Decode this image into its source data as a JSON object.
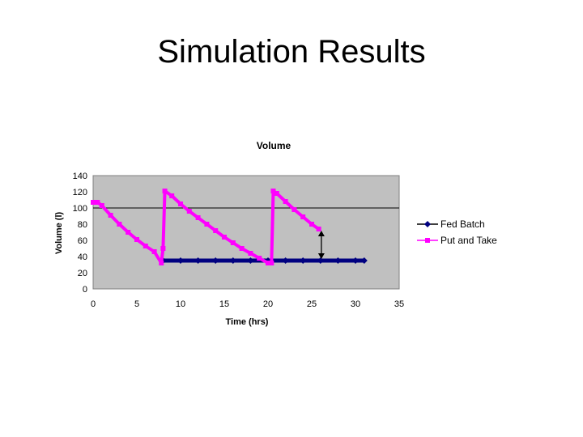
{
  "slide": {
    "title": "Simulation Results"
  },
  "colors": {
    "plot_bg": "#c0c0c0",
    "fed_batch": "#000080",
    "put_and_take": "#ff00ff"
  },
  "chart_data": {
    "type": "line",
    "title": "Volume",
    "xlabel": "Time (hrs)",
    "ylabel": "Volume (l)",
    "xlim": [
      0,
      35
    ],
    "ylim": [
      0,
      140
    ],
    "xticks": [
      0,
      5,
      10,
      15,
      20,
      25,
      30,
      35
    ],
    "yticks": [
      0,
      20,
      40,
      60,
      80,
      100,
      120,
      140
    ],
    "reference_line": 100,
    "legend_position": "right",
    "annotation": "double-headed arrow between the two series at about t = 26 hrs",
    "series": [
      {
        "name": "Fed Batch",
        "color": "#000080",
        "marker": "diamond",
        "x": [
          8,
          10,
          12,
          14,
          16,
          18,
          20,
          22,
          24,
          26,
          28,
          30,
          31
        ],
        "y": [
          35,
          35,
          35,
          35,
          35,
          35,
          35,
          35,
          35,
          35,
          35,
          35,
          35
        ]
      },
      {
        "name": "Put and Take",
        "color": "#ff00ff",
        "marker": "square",
        "x": [
          0,
          0.5,
          1,
          2,
          3,
          4,
          5,
          6,
          7,
          7.8,
          8,
          8.2,
          9,
          10,
          11,
          12,
          13,
          14,
          15,
          16,
          17,
          18,
          19,
          20,
          20.4,
          20.6,
          21,
          22,
          23,
          24,
          25,
          25.8
        ],
        "y": [
          107,
          107,
          103,
          91,
          80,
          70,
          61,
          53,
          46,
          32,
          50,
          121,
          115,
          105,
          96,
          88,
          80,
          72,
          64,
          57,
          50,
          44,
          38,
          32,
          32,
          121,
          118,
          108,
          98,
          89,
          80,
          74
        ]
      }
    ]
  }
}
